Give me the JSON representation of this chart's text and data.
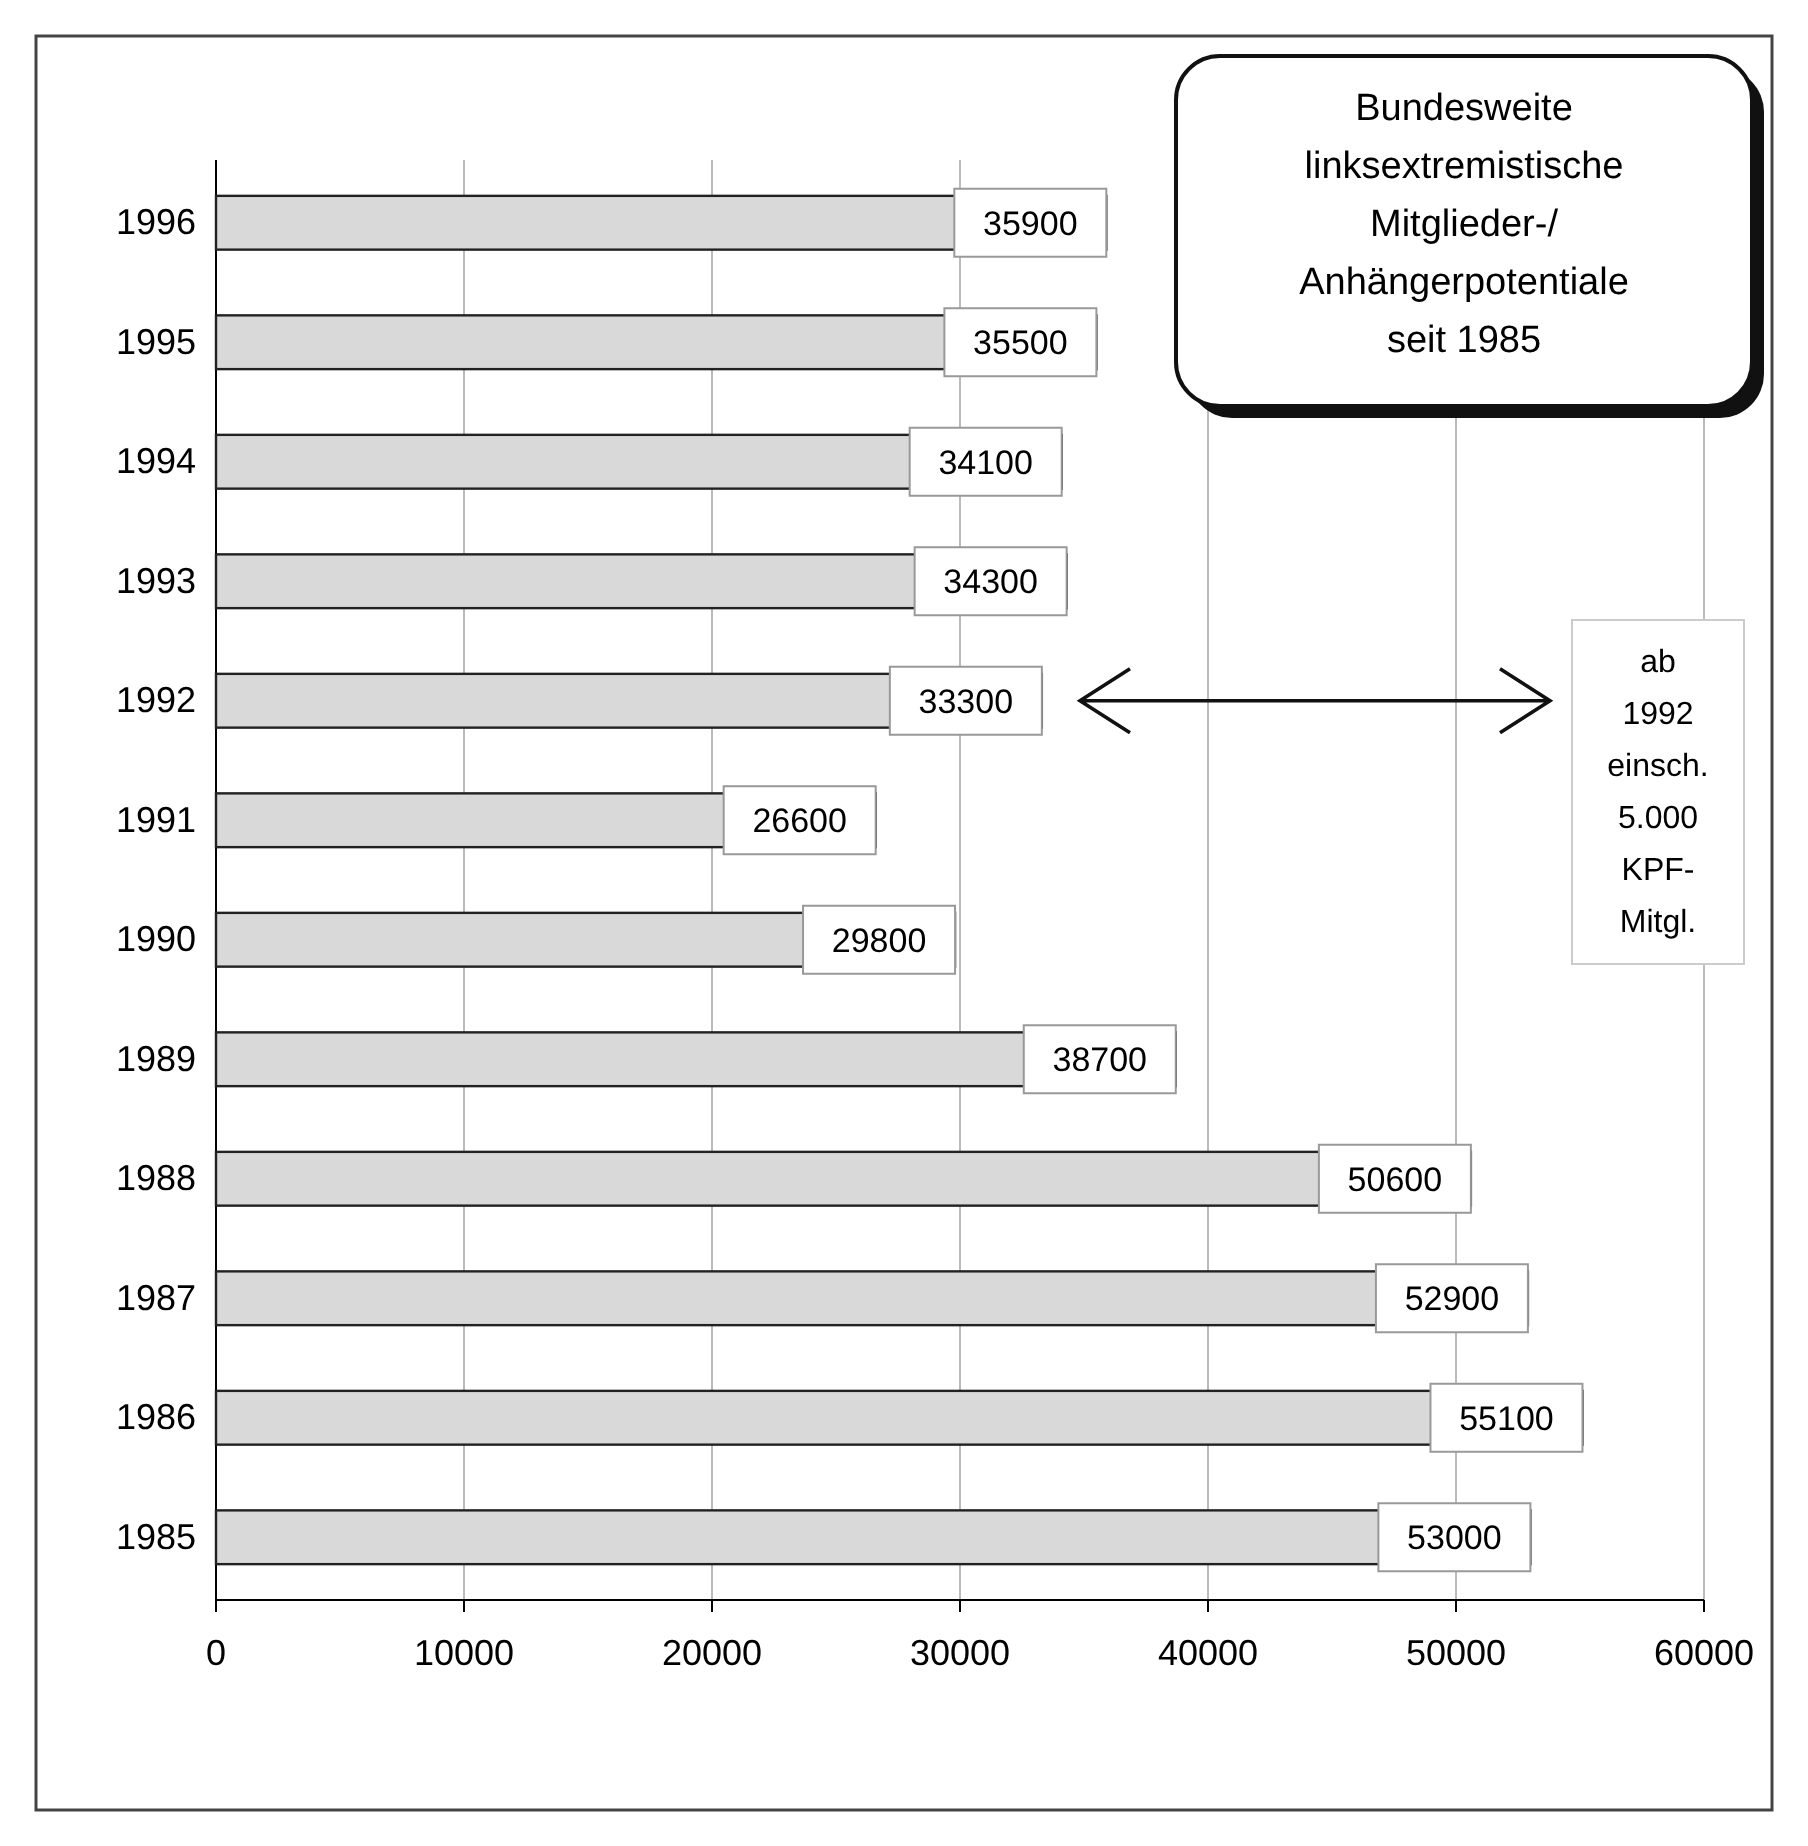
{
  "chart_data": {
    "type": "bar",
    "orientation": "horizontal",
    "title": "Bundesweite\nlinksextremistische\nMitglieder-/\nAnhängerpotentiale\nseit 1985",
    "categories": [
      "1996",
      "1995",
      "1994",
      "1993",
      "1992",
      "1991",
      "1990",
      "1989",
      "1988",
      "1987",
      "1986",
      "1985"
    ],
    "values": [
      35900,
      35500,
      34100,
      34300,
      33300,
      26600,
      29800,
      38700,
      50600,
      52900,
      55100,
      53000
    ],
    "color": "#d9d9d9",
    "xlim": [
      0,
      60000
    ],
    "xticks": [
      0,
      10000,
      20000,
      30000,
      40000,
      50000,
      60000
    ],
    "grid": "x",
    "data_labels": true,
    "annotations": [
      "ab\n1992\neinsch.\n5.000\nKPF-\nMitgl."
    ]
  }
}
